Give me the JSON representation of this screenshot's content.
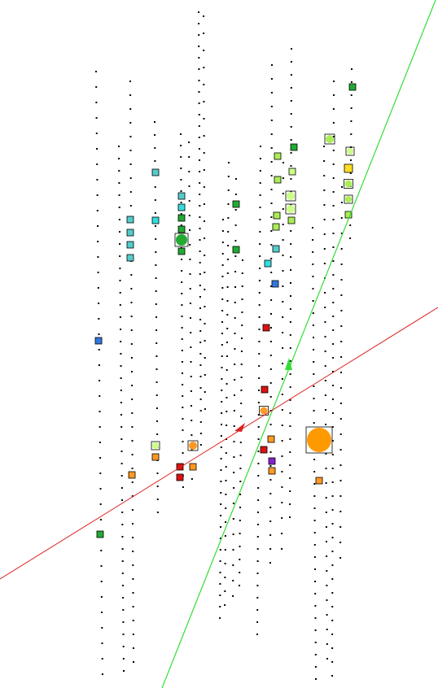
{
  "colors": {
    "background": "#ffffff",
    "sensor_dot": "#000000",
    "hit_outline": "#000000",
    "track_primary": "#33dd33",
    "track_secondary": "#dd2222",
    "big_hit_fill": "#ff9900",
    "palette": {
      "green": "#22aa33",
      "lime": "#aaee55",
      "yellowgreen": "#ccff88",
      "cyan": "#33dddd",
      "teal": "#55cccc",
      "blue": "#3377dd",
      "orange": "#ff9922",
      "red": "#dd1111",
      "purple": "#8822cc",
      "yellow": "#ffdd22"
    }
  },
  "icons": {
    "primary_track_arrow": "arrowhead-icon",
    "secondary_track_arrow": "arrowhead-icon"
  }
}
